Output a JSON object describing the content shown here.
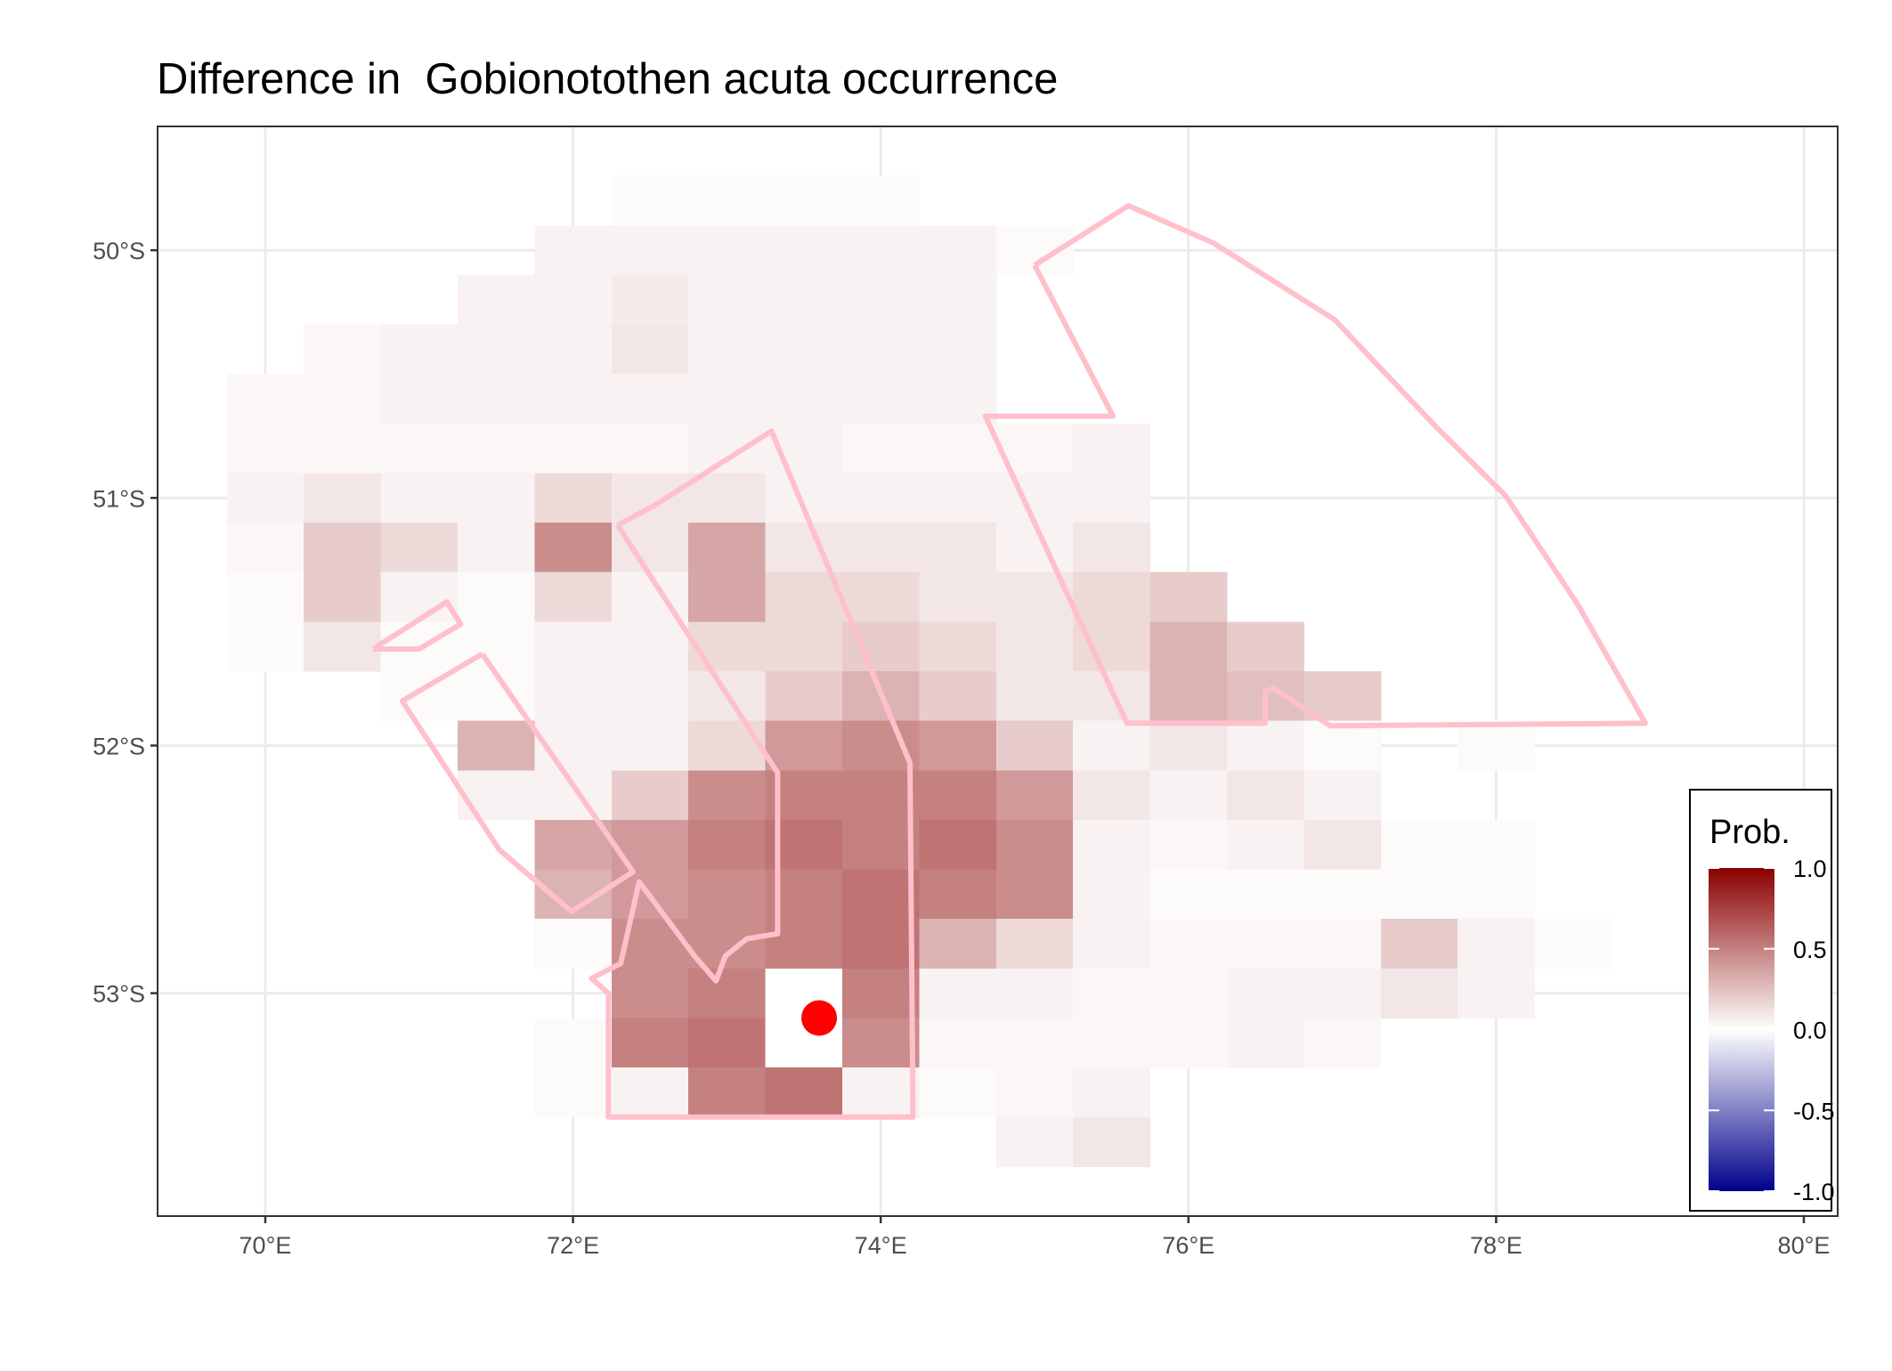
{
  "chart_data": {
    "type": "raster-map",
    "title": "Difference in  Gobionotothen acuta occurrence",
    "xlim": [
      69.3,
      80.22
    ],
    "ylim": [
      -53.9,
      -49.5
    ],
    "xticks": [
      {
        "value": 70,
        "label": "70°E"
      },
      {
        "value": 72,
        "label": "72°E"
      },
      {
        "value": 74,
        "label": "74°E"
      },
      {
        "value": 76,
        "label": "76°E"
      },
      {
        "value": 78,
        "label": "78°E"
      },
      {
        "value": 80,
        "label": "80°E"
      }
    ],
    "yticks": [
      {
        "value": -50,
        "label": "50°S"
      },
      {
        "value": -51,
        "label": "51°S"
      },
      {
        "value": -52,
        "label": "52°S"
      },
      {
        "value": -53,
        "label": "53°S"
      }
    ],
    "grid": true,
    "lon": [
      70.0,
      70.5,
      71.0,
      71.5,
      72.0,
      72.5,
      73.0,
      73.5,
      74.0,
      74.5,
      75.0,
      75.5,
      76.0,
      76.5,
      77.0,
      77.5,
      78.0,
      78.5
    ],
    "lat": [
      -49.8,
      -50.0,
      -50.2,
      -50.4,
      -50.6,
      -50.8,
      -51.0,
      -51.2,
      -51.4,
      -51.6,
      -51.8,
      -52.0,
      -52.2,
      -52.4,
      -52.6,
      -52.8,
      -53.0,
      -53.2,
      -53.4,
      -53.6
    ],
    "values": [
      [
        null,
        null,
        null,
        null,
        null,
        0.02,
        0.02,
        0.02,
        0.02,
        null,
        null,
        null,
        null,
        null,
        null,
        null,
        null,
        null
      ],
      [
        null,
        null,
        null,
        null,
        0.05,
        0.05,
        0.05,
        0.05,
        0.05,
        0.05,
        0.02,
        null,
        null,
        null,
        null,
        null,
        null,
        null
      ],
      [
        null,
        null,
        null,
        0.05,
        0.05,
        0.08,
        0.05,
        0.05,
        0.05,
        0.05,
        null,
        null,
        null,
        null,
        null,
        null,
        null,
        null
      ],
      [
        null,
        0.03,
        0.05,
        0.05,
        0.05,
        0.1,
        0.05,
        0.05,
        0.05,
        0.05,
        null,
        null,
        null,
        null,
        null,
        null,
        null,
        null
      ],
      [
        0.03,
        0.03,
        0.05,
        0.05,
        0.05,
        0.05,
        0.05,
        0.05,
        0.05,
        0.05,
        null,
        null,
        null,
        null,
        null,
        null,
        null,
        null
      ],
      [
        0.03,
        0.03,
        0.03,
        0.03,
        0.03,
        0.03,
        0.05,
        0.05,
        0.03,
        0.03,
        0.03,
        0.05,
        null,
        null,
        null,
        null,
        null,
        null
      ],
      [
        0.05,
        0.1,
        0.05,
        0.05,
        0.15,
        0.1,
        0.1,
        0.05,
        0.05,
        0.05,
        0.05,
        0.05,
        null,
        null,
        null,
        null,
        null,
        null
      ],
      [
        0.03,
        0.2,
        0.15,
        0.05,
        0.45,
        0.1,
        0.35,
        0.1,
        0.1,
        0.1,
        0.05,
        0.1,
        null,
        null,
        null,
        null,
        null,
        null
      ],
      [
        0.02,
        0.2,
        0.05,
        0.02,
        0.15,
        0.05,
        0.35,
        0.15,
        0.15,
        0.1,
        0.1,
        0.15,
        0.2,
        null,
        null,
        null,
        null,
        null
      ],
      [
        0.02,
        0.1,
        0.02,
        0.02,
        0.05,
        0.05,
        0.15,
        0.15,
        0.2,
        0.15,
        0.1,
        0.15,
        0.3,
        0.2,
        null,
        null,
        null,
        null
      ],
      [
        null,
        null,
        0.02,
        0.02,
        0.05,
        0.05,
        0.1,
        0.2,
        0.3,
        0.2,
        0.1,
        0.1,
        0.3,
        0.25,
        0.2,
        null,
        null,
        null
      ],
      [
        null,
        null,
        null,
        0.3,
        0.05,
        0.05,
        0.15,
        0.4,
        0.45,
        0.4,
        0.2,
        0.05,
        0.1,
        0.05,
        0.02,
        null,
        0.02,
        null
      ],
      [
        null,
        null,
        null,
        0.05,
        0.05,
        0.2,
        0.45,
        0.5,
        0.5,
        0.5,
        0.4,
        0.1,
        0.05,
        0.1,
        0.05,
        null,
        null,
        null
      ],
      [
        null,
        null,
        null,
        null,
        0.35,
        0.4,
        0.5,
        0.55,
        0.5,
        0.55,
        0.45,
        0.05,
        0.03,
        0.05,
        0.1,
        0.02,
        0.02,
        null
      ],
      [
        null,
        null,
        null,
        null,
        0.3,
        0.4,
        0.45,
        0.5,
        0.55,
        0.5,
        0.45,
        0.05,
        0.02,
        0.02,
        0.02,
        0.02,
        0.02,
        null
      ],
      [
        null,
        null,
        null,
        null,
        0.02,
        0.45,
        0.45,
        0.5,
        0.55,
        0.3,
        0.15,
        0.05,
        0.03,
        0.03,
        0.03,
        0.2,
        0.05,
        0.02
      ],
      [
        null,
        null,
        null,
        null,
        null,
        0.45,
        0.5,
        0,
        0.5,
        0.05,
        0.05,
        0.03,
        0.03,
        0.05,
        0.05,
        0.1,
        0.05,
        null
      ],
      [
        null,
        null,
        null,
        null,
        0.02,
        0.5,
        0.55,
        0,
        0.45,
        0.03,
        0.03,
        0.03,
        0.03,
        0.05,
        0.03,
        null,
        null,
        null
      ],
      [
        null,
        null,
        null,
        null,
        0.02,
        0.05,
        0.5,
        0.55,
        0.05,
        0.02,
        0.03,
        0.05,
        null,
        null,
        null,
        null,
        null,
        null
      ],
      [
        null,
        null,
        null,
        null,
        null,
        null,
        null,
        null,
        null,
        null,
        0.05,
        0.1,
        null,
        null,
        null,
        null,
        null,
        null
      ]
    ],
    "color_scale": {
      "title": "Prob.",
      "limits": [
        -1,
        1
      ],
      "low": "#00008b",
      "mid": "#ffffff",
      "high": "#8b0000",
      "ticks": [
        {
          "value": 1,
          "label": "1.0"
        },
        {
          "value": 0.5,
          "label": "0.5"
        },
        {
          "value": 0,
          "label": "0.0"
        },
        {
          "value": -0.5,
          "label": "-0.5"
        },
        {
          "value": -1,
          "label": "-1.0"
        }
      ]
    },
    "polygons": {
      "color": "#ffc0cb",
      "shapes": [
        {
          "lon": [
            75.0,
            75.61,
            76.16,
            76.95,
            77.62,
            78.06,
            78.53,
            78.97,
            76.92,
            76.56,
            76.5,
            76.5,
            75.6,
            74.68,
            75.51,
            75.0
          ],
          "lat": [
            -50.06,
            -49.82,
            -49.97,
            -50.28,
            -50.72,
            -50.99,
            -51.43,
            -51.91,
            -51.92,
            -51.77,
            -51.78,
            -51.91,
            -51.91,
            -50.67,
            -50.67,
            -50.06
          ]
        },
        {
          "lon": [
            72.29,
            72.53,
            73.29,
            74.19,
            74.21,
            72.23,
            72.23,
            72.12,
            72.31,
            72.43,
            72.79,
            72.93,
            72.99,
            73.13,
            73.33,
            73.33,
            72.29
          ],
          "lat": [
            -51.11,
            -51.03,
            -50.73,
            -52.07,
            -53.5,
            -53.5,
            -53.0,
            -52.94,
            -52.88,
            -52.55,
            -52.85,
            -52.95,
            -52.85,
            -52.78,
            -52.76,
            -52.11,
            -51.11
          ]
        },
        {
          "lon": [
            71.41,
            70.89,
            71.52,
            71.99,
            72.39,
            71.41
          ],
          "lat": [
            -51.63,
            -51.82,
            -52.42,
            -52.67,
            -52.51,
            -51.63
          ]
        },
        {
          "lon": [
            70.7,
            71.18,
            71.27,
            71.0,
            70.7
          ],
          "lat": [
            -51.61,
            -51.42,
            -51.51,
            -51.61,
            -51.61
          ]
        }
      ]
    },
    "point": {
      "lon": 73.6,
      "lat": -53.1,
      "color": "#ff0000"
    }
  }
}
